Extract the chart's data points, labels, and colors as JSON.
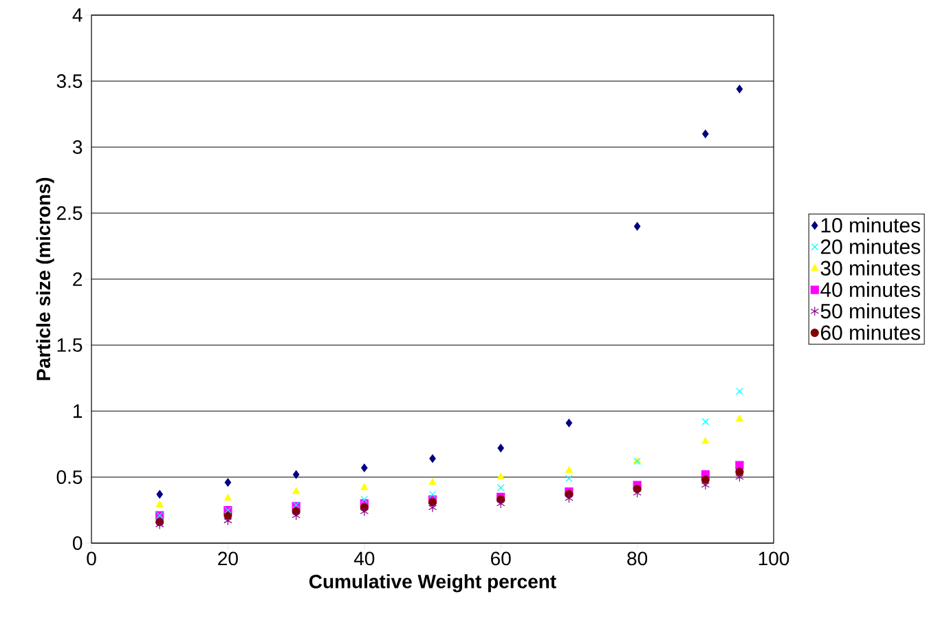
{
  "chart_data": {
    "type": "scatter",
    "xlabel": "Cumulative Weight percent",
    "ylabel": "Particle size (microns)",
    "x": [
      10,
      20,
      30,
      40,
      50,
      60,
      70,
      80,
      90,
      95
    ],
    "xlim": [
      0,
      100
    ],
    "xticks": [
      0,
      20,
      40,
      60,
      80,
      100
    ],
    "ylim": [
      0,
      4
    ],
    "yticks": [
      0,
      0.5,
      1,
      1.5,
      2,
      2.5,
      3,
      3.5,
      4
    ],
    "grid": "y",
    "legend": "right",
    "series": [
      {
        "name": "10 minutes",
        "color": "#000080",
        "marker": "diamond",
        "values": [
          0.37,
          0.46,
          0.52,
          0.57,
          0.64,
          0.72,
          0.91,
          2.4,
          3.1,
          3.44
        ]
      },
      {
        "name": "20 minutes",
        "color": "#00ffff",
        "marker": "cross",
        "values": [
          0.21,
          0.25,
          0.29,
          0.33,
          0.37,
          0.42,
          0.49,
          0.62,
          0.92,
          1.15
        ]
      },
      {
        "name": "30 minutes",
        "color": "#ffff00",
        "marker": "triangle",
        "values": [
          0.29,
          0.34,
          0.39,
          0.42,
          0.46,
          0.5,
          0.55,
          0.62,
          0.77,
          0.94
        ]
      },
      {
        "name": "40 minutes",
        "color": "#ff00ff",
        "marker": "square",
        "values": [
          0.21,
          0.25,
          0.28,
          0.3,
          0.33,
          0.35,
          0.39,
          0.44,
          0.52,
          0.59
        ]
      },
      {
        "name": "50 minutes",
        "color": "#800080",
        "values": [
          0.14,
          0.17,
          0.21,
          0.24,
          0.27,
          0.3,
          0.34,
          0.38,
          0.44,
          0.5
        ]
      },
      {
        "name": "60 minutes",
        "color": "#800000",
        "marker": "circle",
        "values": [
          0.16,
          0.21,
          0.24,
          0.27,
          0.31,
          0.33,
          0.37,
          0.41,
          0.48,
          0.54
        ]
      }
    ]
  }
}
